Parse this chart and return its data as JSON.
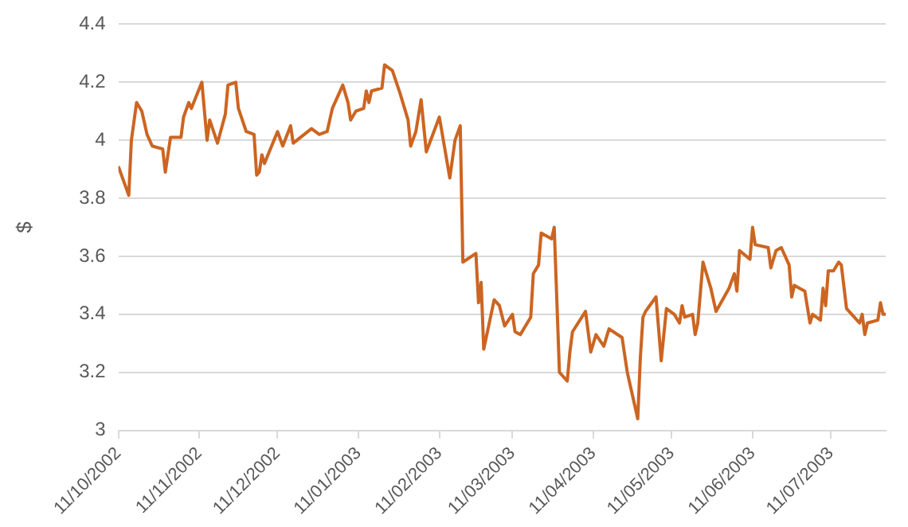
{
  "chart_data": {
    "type": "line",
    "ylabel": "$",
    "grid": "y",
    "legend": false,
    "marker": "none",
    "line_style": "solid",
    "xlim": [
      "2002-10-11",
      "2003-08-01"
    ],
    "xticks": [
      {
        "value": "2002-10-11",
        "label": "11/10/2002"
      },
      {
        "value": "2002-11-11",
        "label": "11/11/2002"
      },
      {
        "value": "2002-12-11",
        "label": "11/12/2002"
      },
      {
        "value": "2003-01-11",
        "label": "11/01/2003"
      },
      {
        "value": "2003-02-11",
        "label": "11/02/2003"
      },
      {
        "value": "2003-03-11",
        "label": "11/03/2003"
      },
      {
        "value": "2003-04-11",
        "label": "11/04/2003"
      },
      {
        "value": "2003-05-11",
        "label": "11/05/2003"
      },
      {
        "value": "2003-06-11",
        "label": "11/06/2003"
      },
      {
        "value": "2003-07-11",
        "label": "11/07/2003"
      }
    ],
    "ylim": [
      3,
      4.4
    ],
    "yticks": [
      3,
      3.2,
      3.4,
      3.6,
      3.8,
      4,
      4.2,
      4.4
    ],
    "x": [
      "2002-10-11",
      "2002-10-15",
      "2002-10-16",
      "2002-10-18",
      "2002-10-20",
      "2002-10-22",
      "2002-10-24",
      "2002-10-28",
      "2002-10-29",
      "2002-10-31",
      "2002-11-04",
      "2002-11-05",
      "2002-11-07",
      "2002-11-08",
      "2002-11-12",
      "2002-11-14",
      "2002-11-15",
      "2002-11-18",
      "2002-11-21",
      "2002-11-22",
      "2002-11-25",
      "2002-11-26",
      "2002-11-29",
      "2002-12-02",
      "2002-12-03",
      "2002-12-04",
      "2002-12-05",
      "2002-12-06",
      "2002-12-11",
      "2002-12-13",
      "2002-12-16",
      "2002-12-17",
      "2002-12-24",
      "2002-12-27",
      "2002-12-30",
      "2003-01-01",
      "2003-01-05",
      "2003-01-07",
      "2003-01-08",
      "2003-01-10",
      "2003-01-13",
      "2003-01-14",
      "2003-01-15",
      "2003-01-16",
      "2003-01-20",
      "2003-01-21",
      "2003-01-24",
      "2003-01-27",
      "2003-01-30",
      "2003-01-31",
      "2003-02-02",
      "2003-02-04",
      "2003-02-06",
      "2003-02-11",
      "2003-02-15",
      "2003-02-17",
      "2003-02-19",
      "2003-02-20",
      "2003-02-25",
      "2003-02-26",
      "2003-02-27",
      "2003-02-28",
      "2003-03-04",
      "2003-03-06",
      "2003-03-08",
      "2003-03-11",
      "2003-03-12",
      "2003-03-14",
      "2003-03-18",
      "2003-03-19",
      "2003-03-21",
      "2003-03-22",
      "2003-03-26",
      "2003-03-27",
      "2003-03-29",
      "2003-04-01",
      "2003-04-02",
      "2003-04-03",
      "2003-04-08",
      "2003-04-10",
      "2003-04-12",
      "2003-04-15",
      "2003-04-17",
      "2003-04-22",
      "2003-04-24",
      "2003-04-28",
      "2003-04-29",
      "2003-04-30",
      "2003-05-01",
      "2003-05-05",
      "2003-05-07",
      "2003-05-09",
      "2003-05-12",
      "2003-05-14",
      "2003-05-15",
      "2003-05-16",
      "2003-05-19",
      "2003-05-20",
      "2003-05-21",
      "2003-05-23",
      "2003-05-26",
      "2003-05-28",
      "2003-06-02",
      "2003-06-04",
      "2003-06-05",
      "2003-06-06",
      "2003-06-10",
      "2003-06-11",
      "2003-06-12",
      "2003-06-17",
      "2003-06-18",
      "2003-06-20",
      "2003-06-22",
      "2003-06-25",
      "2003-06-26",
      "2003-06-27",
      "2003-07-01",
      "2003-07-03",
      "2003-07-04",
      "2003-07-07",
      "2003-07-08",
      "2003-07-09",
      "2003-07-10",
      "2003-07-12",
      "2003-07-14",
      "2003-07-15",
      "2003-07-17",
      "2003-07-21",
      "2003-07-22",
      "2003-07-23",
      "2003-07-24",
      "2003-07-25",
      "2003-07-29",
      "2003-07-30",
      "2003-07-31",
      "2003-08-01"
    ],
    "series": [
      {
        "color": "#cc6522",
        "values": [
          3.91,
          3.81,
          4.0,
          4.13,
          4.1,
          4.02,
          3.98,
          3.97,
          3.89,
          4.01,
          4.01,
          4.08,
          4.13,
          4.11,
          4.2,
          4.0,
          4.07,
          3.99,
          4.09,
          4.19,
          4.2,
          4.11,
          4.03,
          4.02,
          3.88,
          3.89,
          3.95,
          3.92,
          4.03,
          3.98,
          4.05,
          3.99,
          4.04,
          4.02,
          4.03,
          4.11,
          4.19,
          4.13,
          4.07,
          4.1,
          4.11,
          4.17,
          4.13,
          4.17,
          4.18,
          4.26,
          4.24,
          4.16,
          4.07,
          3.98,
          4.03,
          4.14,
          3.96,
          4.08,
          3.87,
          4.0,
          4.05,
          3.58,
          3.61,
          3.44,
          3.51,
          3.28,
          3.45,
          3.43,
          3.36,
          3.4,
          3.34,
          3.33,
          3.39,
          3.54,
          3.57,
          3.68,
          3.66,
          3.7,
          3.2,
          3.17,
          3.27,
          3.34,
          3.41,
          3.27,
          3.33,
          3.29,
          3.35,
          3.32,
          3.2,
          3.04,
          3.25,
          3.39,
          3.41,
          3.46,
          3.24,
          3.42,
          3.4,
          3.37,
          3.43,
          3.39,
          3.4,
          3.33,
          3.37,
          3.58,
          3.49,
          3.41,
          3.49,
          3.54,
          3.48,
          3.62,
          3.59,
          3.7,
          3.64,
          3.63,
          3.56,
          3.62,
          3.63,
          3.57,
          3.46,
          3.5,
          3.48,
          3.37,
          3.4,
          3.38,
          3.49,
          3.43,
          3.55,
          3.55,
          3.58,
          3.57,
          3.42,
          3.38,
          3.37,
          3.4,
          3.33,
          3.37,
          3.38,
          3.44,
          3.4,
          3.4
        ]
      }
    ]
  }
}
